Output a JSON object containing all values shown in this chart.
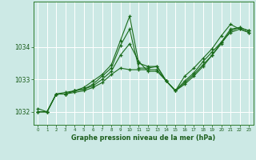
{
  "bg_color": "#cce9e5",
  "grid_color": "#b0d8d3",
  "line_color": "#1a6b1a",
  "marker_color": "#1a6b1a",
  "xlabel": "Graphe pression niveau de la mer (hPa)",
  "xlabel_color": "#1a5c1a",
  "tick_color": "#1a5c1a",
  "axis_color": "#2d7a2d",
  "xlim": [
    -0.5,
    23.5
  ],
  "ylim": [
    1031.6,
    1035.4
  ],
  "yticks": [
    1032,
    1033,
    1034
  ],
  "xticks": [
    0,
    1,
    2,
    3,
    4,
    5,
    6,
    7,
    8,
    9,
    10,
    11,
    12,
    13,
    14,
    15,
    16,
    17,
    18,
    19,
    20,
    21,
    22,
    23
  ],
  "series": [
    [
      1032.0,
      1032.0,
      1032.55,
      1032.55,
      1032.6,
      1032.65,
      1032.75,
      1032.9,
      1033.15,
      1033.35,
      1033.3,
      1033.3,
      1033.3,
      1033.3,
      1032.95,
      1032.65,
      1032.95,
      1033.2,
      1033.55,
      1033.85,
      1034.15,
      1034.45,
      1034.55,
      1034.45
    ],
    [
      1032.0,
      1032.0,
      1032.55,
      1032.55,
      1032.65,
      1032.7,
      1032.8,
      1033.0,
      1033.25,
      1033.75,
      1034.1,
      1033.55,
      1033.25,
      1033.25,
      1032.95,
      1032.65,
      1033.1,
      1033.35,
      1033.65,
      1033.95,
      1034.35,
      1034.7,
      1034.55,
      1034.45
    ],
    [
      1032.0,
      1032.0,
      1032.55,
      1032.55,
      1032.65,
      1032.7,
      1032.85,
      1033.1,
      1033.35,
      1034.05,
      1034.55,
      1033.35,
      1033.35,
      1033.4,
      1032.95,
      1032.65,
      1032.9,
      1033.15,
      1033.45,
      1033.75,
      1034.1,
      1034.5,
      1034.6,
      1034.5
    ],
    [
      1032.1,
      1032.0,
      1032.55,
      1032.6,
      1032.65,
      1032.75,
      1032.95,
      1033.15,
      1033.45,
      1034.2,
      1034.95,
      1033.5,
      1033.4,
      1033.4,
      1032.95,
      1032.65,
      1032.85,
      1033.1,
      1033.4,
      1033.75,
      1034.15,
      1034.55,
      1034.6,
      1034.5
    ]
  ]
}
